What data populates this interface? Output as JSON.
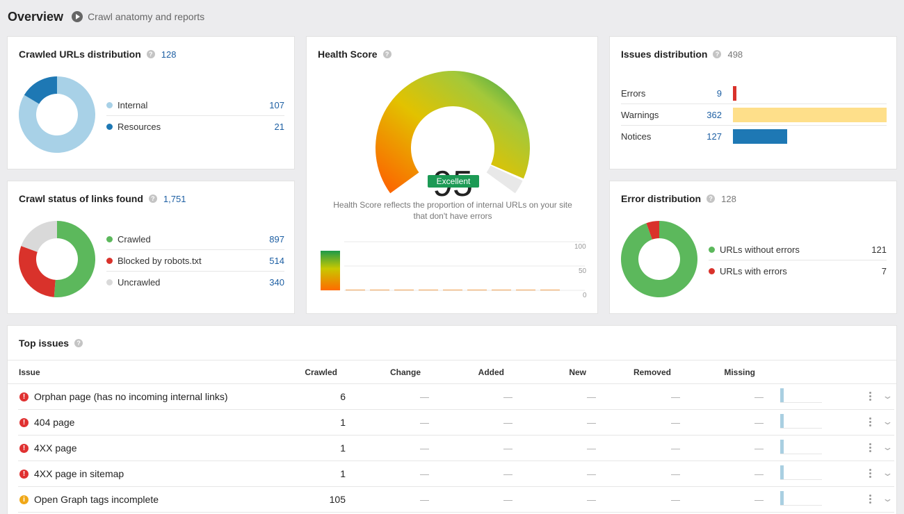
{
  "header": {
    "title": "Overview",
    "subtitle": "Crawl anatomy and reports"
  },
  "crawled_urls": {
    "title": "Crawled URLs distribution",
    "count": "128",
    "items": [
      {
        "label": "Internal",
        "value": "107",
        "num": 107,
        "color": "#a8d1e7"
      },
      {
        "label": "Resources",
        "value": "21",
        "num": 21,
        "color": "#1e78b4"
      }
    ]
  },
  "crawl_status": {
    "title": "Crawl status of links found",
    "count": "1,751",
    "items": [
      {
        "label": "Crawled",
        "value": "897",
        "num": 897,
        "color": "#5cb85c"
      },
      {
        "label": "Blocked by robots.txt",
        "value": "514",
        "num": 514,
        "color": "#d9322b"
      },
      {
        "label": "Uncrawled",
        "value": "340",
        "num": 340,
        "color": "#d9d9d9"
      }
    ]
  },
  "health": {
    "title": "Health Score",
    "score": "95",
    "score_value": 95,
    "rating": "Excellent",
    "description": "Health Score reflects the proportion of internal URLs on your site that don't have errors",
    "axis_ticks": [
      "100",
      "50",
      "0"
    ]
  },
  "issues_dist": {
    "title": "Issues distribution",
    "count": "498",
    "items": [
      {
        "label": "Errors",
        "value": "9",
        "num": 9,
        "color": "#d9322b"
      },
      {
        "label": "Warnings",
        "value": "362",
        "num": 362,
        "color": "#fedf8a"
      },
      {
        "label": "Notices",
        "value": "127",
        "num": 127,
        "color": "#1e78b4"
      }
    ]
  },
  "error_dist": {
    "title": "Error distribution",
    "count": "128",
    "items": [
      {
        "label": "URLs without errors",
        "value": "121",
        "num": 121,
        "color": "#5cb85c"
      },
      {
        "label": "URLs with errors",
        "value": "7",
        "num": 7,
        "color": "#d9322b"
      }
    ]
  },
  "top_issues": {
    "title": "Top issues",
    "columns": {
      "issue": "Issue",
      "crawled": "Crawled",
      "change": "Change",
      "added": "Added",
      "new": "New",
      "removed": "Removed",
      "missing": "Missing"
    },
    "dash": "—",
    "rows": [
      {
        "severity": "error",
        "name": "Orphan page (has no incoming internal links)",
        "crawled": "6"
      },
      {
        "severity": "error",
        "name": "404 page",
        "crawled": "1"
      },
      {
        "severity": "error",
        "name": "4XX page",
        "crawled": "1"
      },
      {
        "severity": "error",
        "name": "4XX page in sitemap",
        "crawled": "1"
      },
      {
        "severity": "warning",
        "name": "Open Graph tags incomplete",
        "crawled": "105"
      }
    ]
  }
}
